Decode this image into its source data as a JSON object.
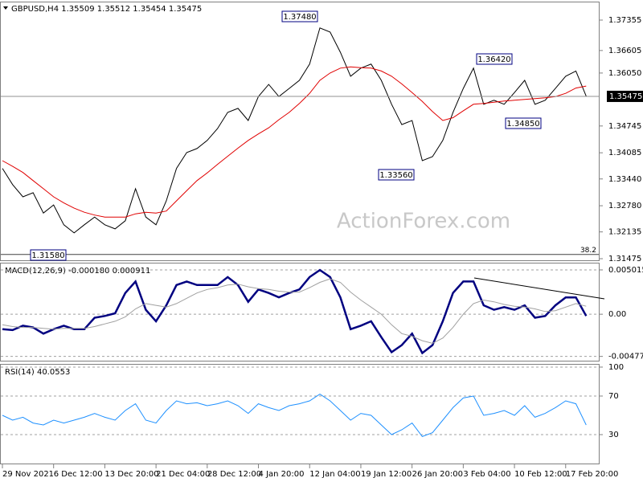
{
  "chart_data": [
    {
      "type": "line",
      "title": "GBPUSD,H4  1.35509 1.35512 1.35454 1.35475",
      "watermark": "ActionForex.com",
      "last_price": 1.35475,
      "annotations": [
        "1.37480",
        "1.36420",
        "1.34850",
        "1.33560",
        "1.31580"
      ],
      "fib_level": {
        "label": "38.2",
        "value": 1.3158
      },
      "xlim": [
        0,
        58
      ],
      "ylim": [
        1.31416,
        1.3781
      ],
      "yticks": [
        1.37355,
        1.36605,
        {
          "value": 1.3605,
          "label": "1.36050"
        },
        1.34745,
        1.34085,
        {
          "value": 1.3344,
          "label": "1.33440"
        },
        {
          "value": 1.3278,
          "label": "1.32780"
        },
        1.32135,
        1.31475
      ],
      "grid": false,
      "series": [
        {
          "color": "#000000",
          "values": [
            1.337,
            1.333,
            1.33,
            1.331,
            1.326,
            1.328,
            1.3231,
            1.3211,
            1.3231,
            1.325,
            1.3231,
            1.3221,
            1.3241,
            1.332,
            1.325,
            1.3231,
            1.329,
            1.337,
            1.3409,
            1.3419,
            1.3439,
            1.3468,
            1.3508,
            1.3518,
            1.3488,
            1.3547,
            1.3577,
            1.3547,
            1.3567,
            1.3587,
            1.3627,
            1.3716,
            1.3706,
            1.3656,
            1.3597,
            1.3617,
            1.3627,
            1.3587,
            1.3528,
            1.3478,
            1.3488,
            1.3389,
            1.3399,
            1.3439,
            1.3508,
            1.3567,
            1.3617,
            1.3528,
            1.3538,
            1.3528,
            1.3557,
            1.3587,
            1.3528,
            1.3538,
            1.3567,
            1.3597,
            1.361,
            1.3548
          ]
        },
        {
          "color": "#e00000",
          "values": [
            1.3389,
            1.3375,
            1.336,
            1.334,
            1.332,
            1.33,
            1.3285,
            1.3272,
            1.3262,
            1.3255,
            1.325,
            1.325,
            1.325,
            1.3258,
            1.3262,
            1.326,
            1.3265,
            1.329,
            1.3315,
            1.334,
            1.3359,
            1.338,
            1.34,
            1.342,
            1.3439,
            1.3455,
            1.347,
            1.349,
            1.3508,
            1.353,
            1.3555,
            1.3587,
            1.3605,
            1.3617,
            1.362,
            1.3618,
            1.3617,
            1.361,
            1.3597,
            1.3578,
            1.3557,
            1.3535,
            1.351,
            1.3488,
            1.3495,
            1.3512,
            1.3528,
            1.353,
            1.3533,
            1.3536,
            1.3538,
            1.354,
            1.3542,
            1.3544,
            1.3547,
            1.3555,
            1.3568,
            1.3573
          ]
        }
      ]
    },
    {
      "type": "line",
      "title": "MACD(12,26,9) -0.000180 0.000911",
      "xlim": [
        0,
        58
      ],
      "ylim": [
        -0.00535,
        0.00583
      ],
      "yticks": [
        0.005015,
        {
          "value": 0,
          "label": "0.00"
        },
        -0.004773
      ],
      "grid": true,
      "series": [
        {
          "color": "#000080",
          "values": [
            -0.0017,
            -0.0018,
            -0.0013,
            -0.0015,
            -0.0022,
            -0.0017,
            -0.0013,
            -0.0017,
            -0.0017,
            -0.0004,
            -0.0002,
            0.0001,
            0.0024,
            0.0037,
            0.0005,
            -0.0008,
            0.001,
            0.0033,
            0.0037,
            0.0033,
            0.0033,
            0.0033,
            0.0042,
            0.0033,
            0.0014,
            0.0028,
            0.0024,
            0.0019,
            0.0024,
            0.0028,
            0.0042,
            0.005,
            0.0042,
            0.0019,
            -0.0017,
            -0.0013,
            -0.0008,
            -0.0026,
            -0.0043,
            -0.0035,
            -0.0022,
            -0.0044,
            -0.0035,
            -0.0008,
            0.0024,
            0.0037,
            0.0037,
            0.001,
            0.0005,
            0.0008,
            0.0005,
            0.001,
            -0.0004,
            -0.0002,
            0.001,
            0.0019,
            0.0019,
            -0.0002
          ]
        },
        {
          "color": "#a0a0a0",
          "values": [
            -0.0012,
            -0.0014,
            -0.0015,
            -0.0015,
            -0.0016,
            -0.0017,
            -0.0016,
            -0.0016,
            -0.0016,
            -0.0014,
            -0.0011,
            -0.0008,
            -0.0003,
            0.0006,
            0.0012,
            0.001,
            0.0008,
            0.0012,
            0.0018,
            0.0024,
            0.0028,
            0.003,
            0.0033,
            0.0034,
            0.0031,
            0.0029,
            0.0028,
            0.0026,
            0.0025,
            0.0025,
            0.003,
            0.0036,
            0.004,
            0.0036,
            0.0025,
            0.0016,
            0.0008,
            0,
            -0.0012,
            -0.0022,
            -0.0025,
            -0.003,
            -0.0033,
            -0.0027,
            -0.0015,
            0,
            0.0012,
            0.0016,
            0.0014,
            0.0011,
            0.0009,
            0.0008,
            0.0006,
            0.0003,
            0.0004,
            0.0008,
            0.0012,
            0.0009
          ]
        }
      ]
    },
    {
      "type": "line",
      "title": "RSI(14) 40.0553",
      "xlim": [
        0,
        58
      ],
      "ylim": [
        -0.8,
        103.3
      ],
      "yticks": [
        100,
        70,
        30
      ],
      "grid": true,
      "categories": [
        "29 Nov 2021",
        null,
        null,
        null,
        null,
        "6 Dec 12:00",
        null,
        null,
        null,
        null,
        "13 Dec 20:00",
        null,
        null,
        null,
        null,
        "21 Dec 04:00",
        null,
        null,
        null,
        null,
        "28 Dec 12:00",
        null,
        null,
        null,
        null,
        "4 Jan 20:00",
        null,
        null,
        null,
        null,
        "12 Jan 04:00",
        null,
        null,
        null,
        null,
        "19 Jan 12:00",
        null,
        null,
        null,
        null,
        "26 Jan 20:00",
        null,
        null,
        null,
        null,
        "3 Feb 04:00",
        null,
        null,
        null,
        null,
        "10 Feb 12:00",
        null,
        null,
        null,
        null,
        "17 Feb 20:00",
        null,
        null
      ],
      "series": [
        {
          "color": "#1e90ff",
          "values": [
            50,
            45,
            48,
            42,
            40,
            45,
            42,
            45,
            48,
            52,
            48,
            45,
            55,
            62,
            45,
            42,
            55,
            65,
            62,
            63,
            60,
            62,
            65,
            60,
            52,
            62,
            58,
            55,
            60,
            62,
            65,
            72,
            65,
            55,
            45,
            52,
            50,
            40,
            30,
            35,
            42,
            28,
            32,
            45,
            58,
            68,
            70,
            50,
            52,
            55,
            50,
            60,
            48,
            52,
            58,
            65,
            62,
            40
          ]
        }
      ]
    }
  ]
}
